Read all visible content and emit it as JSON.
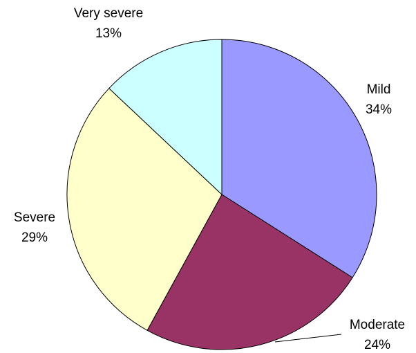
{
  "chart_data": {
    "type": "pie",
    "categories": [
      "Mild",
      "Moderate",
      "Severe",
      "Very severe"
    ],
    "values": [
      34,
      24,
      29,
      13
    ],
    "value_labels": [
      "34%",
      "24%",
      "29%",
      "13%"
    ],
    "colors": [
      "#9999ff",
      "#993366",
      "#ffffcc",
      "#ccffff"
    ]
  }
}
